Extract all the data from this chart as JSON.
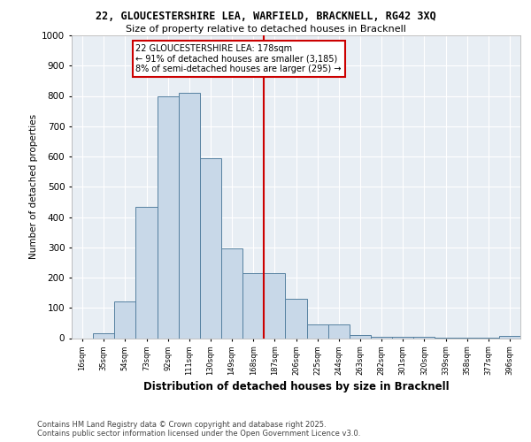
{
  "title_line1": "22, GLOUCESTERSHIRE LEA, WARFIELD, BRACKNELL, RG42 3XQ",
  "title_line2": "Size of property relative to detached houses in Bracknell",
  "xlabel": "Distribution of detached houses by size in Bracknell",
  "ylabel": "Number of detached properties",
  "categories": [
    "16sqm",
    "35sqm",
    "54sqm",
    "73sqm",
    "92sqm",
    "111sqm",
    "130sqm",
    "149sqm",
    "168sqm",
    "187sqm",
    "206sqm",
    "225sqm",
    "244sqm",
    "263sqm",
    "282sqm",
    "301sqm",
    "320sqm",
    "339sqm",
    "358sqm",
    "377sqm",
    "396sqm"
  ],
  "values": [
    0,
    15,
    120,
    435,
    800,
    810,
    595,
    295,
    215,
    215,
    130,
    45,
    45,
    10,
    5,
    5,
    5,
    2,
    2,
    2,
    8
  ],
  "bar_color": "#c8d8e8",
  "bar_edge_color": "#5580a0",
  "vline_color": "#cc0000",
  "annotation_text": "22 GLOUCESTERSHIRE LEA: 178sqm\n← 91% of detached houses are smaller (3,185)\n8% of semi-detached houses are larger (295) →",
  "annotation_box_color": "#ffffff",
  "annotation_box_edge": "#cc0000",
  "footer_text": "Contains HM Land Registry data © Crown copyright and database right 2025.\nContains public sector information licensed under the Open Government Licence v3.0.",
  "ylim": [
    0,
    1000
  ],
  "background_color": "#e8eef4",
  "grid_color": "#ffffff",
  "yticks": [
    0,
    100,
    200,
    300,
    400,
    500,
    600,
    700,
    800,
    900,
    1000
  ]
}
